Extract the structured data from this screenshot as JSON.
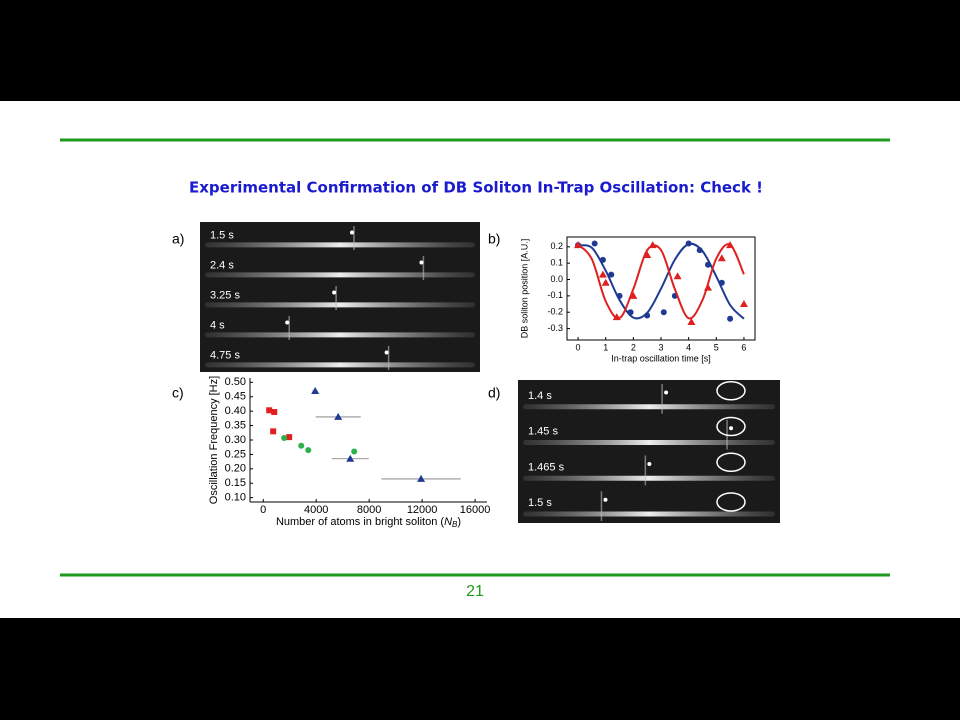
{
  "slide": {
    "title": "Experimental Confirmation of DB Soliton In-Trap Oscillation:  Check !",
    "page_number": "21"
  },
  "panel_a": {
    "label": "a)",
    "frames": [
      "1.5 s",
      "2.4 s",
      "3.25 s",
      "4 s",
      "4.75 s"
    ]
  },
  "panel_d": {
    "label": "d)",
    "frames": [
      "1.4 s",
      "1.45 s",
      "1.465 s",
      "1.5 s"
    ]
  },
  "chart_data": [
    {
      "type": "scatter",
      "label": "b)",
      "x_label": "In-trap oscillation time [s]",
      "y_label": "DB soliton position [A.U.]",
      "frame": "box",
      "xlim": [
        -0.4,
        6.4
      ],
      "xticks": [
        0,
        1,
        2,
        3,
        4,
        5,
        6
      ],
      "ylim": [
        -0.37,
        0.26
      ],
      "yticks": [
        0.2,
        0.1,
        {
          "value": 0,
          "label": "0.0"
        },
        -0.1,
        -0.2,
        -0.3
      ],
      "series": [
        {
          "color": "#1f3a93",
          "marker": "circle",
          "x": [
            0,
            0.6,
            0.9,
            1.2,
            1.5,
            1.9,
            2.5,
            3.1,
            3.5,
            4.0,
            4.4,
            4.7,
            5.2,
            5.5
          ],
          "values": [
            0.21,
            0.22,
            0.12,
            0.03,
            -0.1,
            -0.2,
            -0.22,
            -0.2,
            -0.1,
            0.22,
            0.18,
            0.09,
            -0.02,
            -0.24
          ]
        },
        {
          "color": "#e02020",
          "marker": "triangle",
          "x": [
            0,
            0.9,
            1.0,
            1.4,
            2.0,
            2.5,
            2.7,
            3.6,
            4.1,
            4.7,
            5.2,
            5.5,
            6.0
          ],
          "values": [
            0.21,
            0.03,
            -0.02,
            -0.23,
            -0.1,
            0.15,
            0.21,
            0.02,
            -0.26,
            -0.05,
            0.13,
            0.21,
            -0.15
          ]
        },
        {
          "color": "#1f3a93",
          "line": true,
          "x": [
            0,
            0.5,
            1,
            1.5,
            2,
            2.5,
            3,
            3.5,
            4,
            4.5,
            5,
            5.5,
            6
          ],
          "values": [
            0.208,
            0.194,
            0.054,
            -0.125,
            -0.233,
            -0.204,
            -0.056,
            0.121,
            0.217,
            0.174,
            0.019,
            -0.156,
            -0.24
          ]
        },
        {
          "color": "#e02020",
          "line": true,
          "x": [
            0,
            0.5,
            1,
            1.5,
            2,
            2.5,
            3,
            3.5,
            4,
            4.5,
            5,
            5.5,
            6
          ],
          "values": [
            0.214,
            0.124,
            -0.133,
            -0.236,
            -0.058,
            0.179,
            0.18,
            -0.058,
            -0.237,
            -0.126,
            0.128,
            0.213,
            0.032
          ]
        }
      ]
    },
    {
      "type": "scatter",
      "label": "c)",
      "x_label_parts": [
        "Number of atoms in bright soliton (",
        "N",
        "B",
        ")"
      ],
      "y_label": "Oscillation Frequency [Hz]",
      "frame": "axes",
      "xlim": [
        -1000,
        16900
      ],
      "xticks": [
        0,
        4000,
        8000,
        12000,
        16000
      ],
      "ylim": [
        0.085,
        0.515
      ],
      "yticks": [
        {
          "value": 0.1,
          "label": "0.10"
        },
        0.15,
        {
          "value": 0.2,
          "label": "0.20"
        },
        0.25,
        {
          "value": 0.3,
          "label": "0.30"
        },
        0.35,
        {
          "value": 0.4,
          "label": "0.40"
        },
        0.45,
        {
          "value": 0.5,
          "label": "0.50"
        }
      ],
      "series": [
        {
          "color": "#e02020",
          "marker": "square",
          "x": [
            450,
            830,
            750,
            1960
          ],
          "values": [
            0.403,
            0.397,
            0.33,
            0.31
          ]
        },
        {
          "color": "#2bb04a",
          "marker": "circle",
          "x": [
            1580,
            2870,
            3400,
            6870
          ],
          "values": [
            0.307,
            0.28,
            0.265,
            0.26
          ]
        },
        {
          "color": "#1f3a93",
          "marker": "triangle",
          "x": [
            3920,
            5660,
            6570,
            11920
          ],
          "values": [
            0.47,
            0.38,
            0.235,
            0.165
          ],
          "x_errors": [
            200,
            1700,
            1400,
            3000
          ]
        }
      ]
    }
  ]
}
